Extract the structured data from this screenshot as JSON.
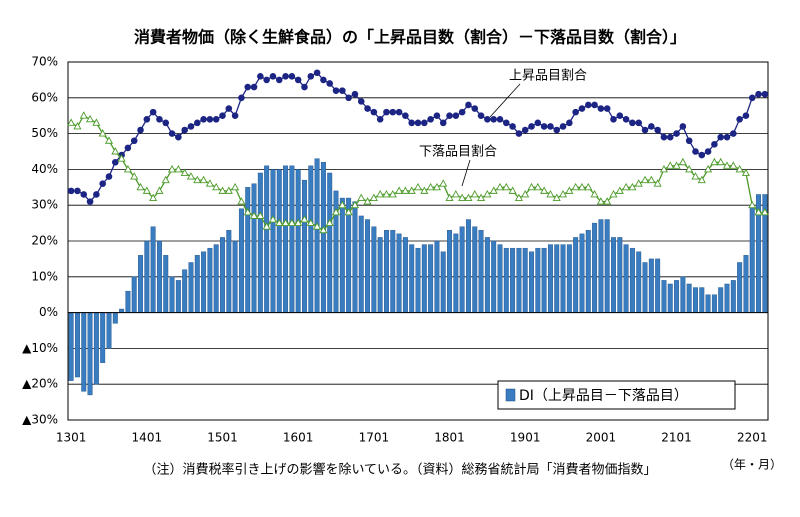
{
  "chart_data": {
    "type": "bar_line",
    "title": "消費者物価（除く生鮮食品）の「上昇品目数（割合）－下落品目数（割合）」",
    "x_unit": "（年・月）",
    "note": "（注）消費税率引き上げの影響を除いている。（資料）総務省統計局「消費者物価指数」",
    "categories": [
      "1301",
      null,
      null,
      null,
      null,
      null,
      null,
      null,
      null,
      null,
      null,
      null,
      "1401",
      null,
      null,
      null,
      null,
      null,
      null,
      null,
      null,
      null,
      null,
      null,
      "1501",
      null,
      null,
      null,
      null,
      null,
      null,
      null,
      null,
      null,
      null,
      null,
      "1601",
      null,
      null,
      null,
      null,
      null,
      null,
      null,
      null,
      null,
      null,
      null,
      "1701",
      null,
      null,
      null,
      null,
      null,
      null,
      null,
      null,
      null,
      null,
      null,
      "1801",
      null,
      null,
      null,
      null,
      null,
      null,
      null,
      null,
      null,
      null,
      null,
      "1901",
      null,
      null,
      null,
      null,
      null,
      null,
      null,
      null,
      null,
      null,
      null,
      "2001",
      null,
      null,
      null,
      null,
      null,
      null,
      null,
      null,
      null,
      null,
      null,
      "2101",
      null,
      null,
      null,
      null,
      null,
      null,
      null,
      null,
      null,
      null,
      null,
      "2201",
      null,
      null
    ],
    "series": [
      {
        "name": "上昇品目割合",
        "kind": "line",
        "marker": "circle",
        "color": "#1c2584",
        "values": [
          34,
          34,
          33,
          31,
          33,
          36,
          38,
          42,
          44,
          46,
          48,
          51,
          54,
          56,
          54,
          53,
          50,
          49,
          51,
          52,
          53,
          54,
          54,
          54,
          55,
          57,
          55,
          60,
          63,
          63,
          66,
          65,
          66,
          65,
          66,
          66,
          65,
          63,
          66,
          67,
          65,
          64,
          62,
          62,
          60,
          61,
          59,
          57,
          56,
          54,
          56,
          56,
          56,
          55,
          53,
          53,
          53,
          54,
          55,
          53,
          55,
          55,
          56,
          58,
          57,
          55,
          54,
          54,
          54,
          53,
          52,
          50,
          51,
          52,
          53,
          52,
          52,
          51,
          52,
          53,
          56,
          57,
          58,
          58,
          57,
          57,
          54,
          55,
          54,
          53,
          53,
          51,
          52,
          51,
          49,
          49,
          50,
          52,
          48,
          45,
          44,
          45,
          47,
          49,
          49,
          50,
          54,
          55,
          60,
          61,
          61
        ]
      },
      {
        "name": "下落品目割合",
        "kind": "line",
        "marker": "triangle",
        "color": "#4c9a2a",
        "values": [
          53,
          52,
          55,
          54,
          53,
          50,
          48,
          45,
          43,
          40,
          38,
          35,
          34,
          32,
          34,
          37,
          40,
          40,
          39,
          38,
          37,
          37,
          36,
          35,
          34,
          34,
          35,
          31,
          28,
          27,
          27,
          24,
          26,
          25,
          25,
          25,
          25,
          26,
          25,
          24,
          23,
          25,
          28,
          30,
          28,
          30,
          32,
          31,
          32,
          33,
          33,
          33,
          34,
          34,
          34,
          35,
          34,
          35,
          35,
          36,
          32,
          33,
          32,
          32,
          33,
          32,
          33,
          34,
          35,
          35,
          34,
          32,
          33,
          35,
          35,
          34,
          33,
          32,
          33,
          34,
          35,
          35,
          35,
          33,
          31,
          31,
          33,
          34,
          35,
          35,
          36,
          37,
          37,
          36,
          40,
          41,
          41,
          42,
          40,
          38,
          37,
          40,
          42,
          42,
          41,
          41,
          40,
          39,
          30,
          28,
          28
        ]
      },
      {
        "name": "DI（上昇品目－下落品目）",
        "kind": "bar",
        "color": "#3a7cc0",
        "values": [
          -19,
          -18,
          -22,
          -23,
          -20,
          -14,
          -10,
          -3,
          1,
          6,
          10,
          16,
          20,
          24,
          20,
          16,
          10,
          9,
          12,
          14,
          16,
          17,
          18,
          19,
          21,
          23,
          20,
          29,
          35,
          36,
          39,
          41,
          40,
          40,
          41,
          41,
          40,
          37,
          41,
          43,
          42,
          39,
          34,
          32,
          32,
          31,
          27,
          26,
          24,
          21,
          23,
          23,
          22,
          21,
          19,
          18,
          19,
          19,
          20,
          17,
          23,
          22,
          24,
          26,
          24,
          23,
          21,
          20,
          19,
          18,
          18,
          18,
          18,
          17,
          18,
          18,
          19,
          19,
          19,
          19,
          21,
          22,
          23,
          25,
          26,
          26,
          21,
          21,
          19,
          18,
          17,
          14,
          15,
          15,
          9,
          8,
          9,
          10,
          8,
          7,
          7,
          5,
          5,
          7,
          8,
          9,
          14,
          16,
          30,
          33,
          33
        ]
      }
    ],
    "ylim": [
      -30,
      70
    ],
    "yticks": [
      {
        "value": 70,
        "label": "70%"
      },
      {
        "value": 60,
        "label": "60%"
      },
      {
        "value": 50,
        "label": "50%"
      },
      {
        "value": 40,
        "label": "40%"
      },
      {
        "value": 30,
        "label": "30%"
      },
      {
        "value": 20,
        "label": "20%"
      },
      {
        "value": 10,
        "label": "10%"
      },
      {
        "value": 0,
        "label": "0%"
      },
      {
        "value": -10,
        "label": "▲10%"
      },
      {
        "value": -20,
        "label": "▲20%"
      },
      {
        "value": -30,
        "label": "▲30%"
      }
    ],
    "grid": true
  }
}
